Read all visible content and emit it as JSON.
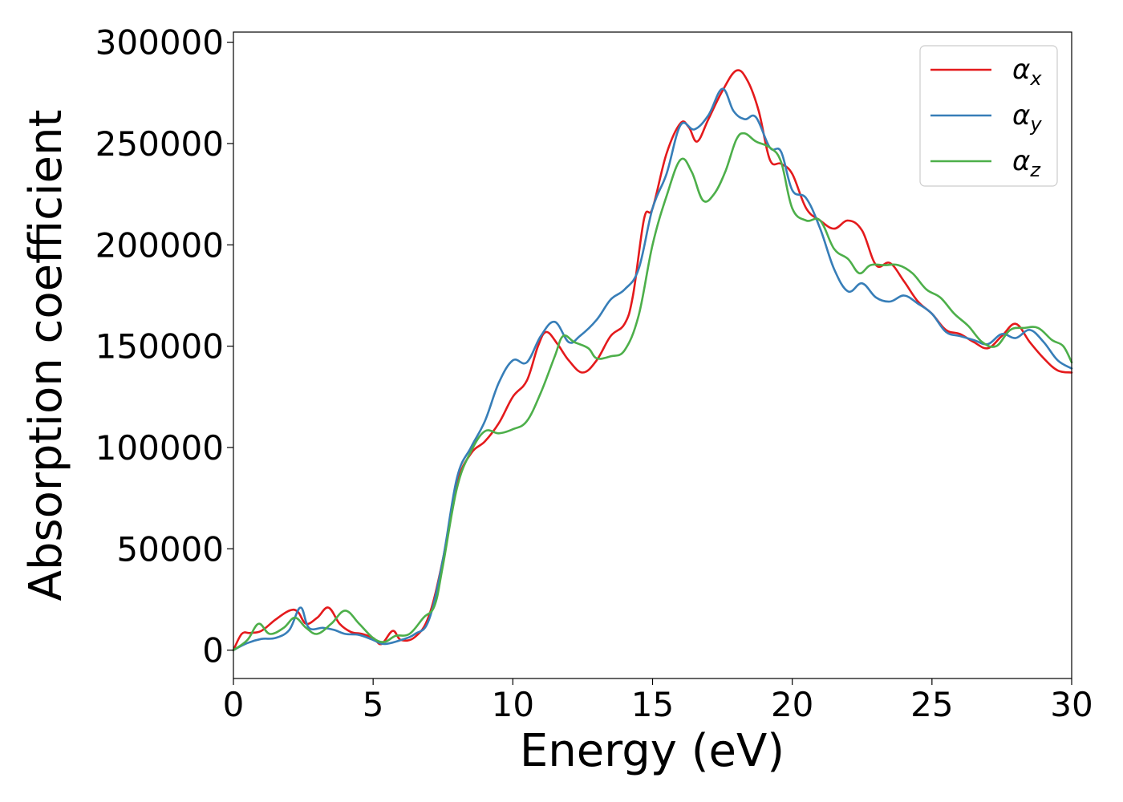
{
  "chart_data": {
    "type": "line",
    "xlabel": "Energy (eV)",
    "ylabel": "Absorption coefficient",
    "xlim": [
      0,
      30
    ],
    "ylim": [
      -14000,
      305000
    ],
    "xticks": [
      "0",
      "5",
      "10",
      "15",
      "20",
      "25",
      "30"
    ],
    "yticks": [
      "0",
      "50000",
      "100000",
      "150000",
      "200000",
      "250000",
      "300000"
    ],
    "xtick_values": [
      0,
      5,
      10,
      15,
      20,
      25,
      30
    ],
    "ytick_values": [
      0,
      50000,
      100000,
      150000,
      200000,
      250000,
      300000
    ],
    "grid": false,
    "legend_position": "top-right",
    "series": [
      {
        "name": "α_x",
        "symbol": "α",
        "subscript": "x",
        "color": "#e41a1c",
        "points": [
          [
            0,
            0
          ],
          [
            0.3,
            8000
          ],
          [
            0.6,
            8500
          ],
          [
            1,
            9500
          ],
          [
            1.5,
            15000
          ],
          [
            2,
            19500
          ],
          [
            2.3,
            19000
          ],
          [
            2.6,
            13000
          ],
          [
            3,
            16000
          ],
          [
            3.4,
            21000
          ],
          [
            3.8,
            13000
          ],
          [
            4.2,
            9000
          ],
          [
            4.6,
            8000
          ],
          [
            5,
            6000
          ],
          [
            5.3,
            3000
          ],
          [
            5.7,
            9500
          ],
          [
            6,
            5000
          ],
          [
            6.5,
            6500
          ],
          [
            7,
            17000
          ],
          [
            7.5,
            45000
          ],
          [
            8,
            82000
          ],
          [
            8.5,
            97000
          ],
          [
            9,
            103000
          ],
          [
            9.5,
            112000
          ],
          [
            10,
            125000
          ],
          [
            10.5,
            133000
          ],
          [
            10.9,
            150000
          ],
          [
            11.2,
            157000
          ],
          [
            11.6,
            151000
          ],
          [
            12,
            143000
          ],
          [
            12.5,
            137000
          ],
          [
            13,
            143000
          ],
          [
            13.5,
            155000
          ],
          [
            14,
            161000
          ],
          [
            14.3,
            175000
          ],
          [
            14.7,
            213000
          ],
          [
            15,
            218000
          ],
          [
            15.5,
            245000
          ],
          [
            16,
            260000
          ],
          [
            16.3,
            258000
          ],
          [
            16.6,
            251000
          ],
          [
            17,
            262000
          ],
          [
            17.5,
            276000
          ],
          [
            18,
            286000
          ],
          [
            18.4,
            281000
          ],
          [
            18.8,
            266000
          ],
          [
            19.2,
            242000
          ],
          [
            19.6,
            240000
          ],
          [
            20,
            235000
          ],
          [
            20.5,
            218000
          ],
          [
            21,
            212000
          ],
          [
            21.5,
            208000
          ],
          [
            22,
            212000
          ],
          [
            22.5,
            207000
          ],
          [
            23,
            190000
          ],
          [
            23.5,
            191000
          ],
          [
            24,
            182000
          ],
          [
            24.5,
            172000
          ],
          [
            25,
            166000
          ],
          [
            25.5,
            158000
          ],
          [
            26,
            156000
          ],
          [
            26.5,
            152000
          ],
          [
            27,
            149000
          ],
          [
            27.5,
            155000
          ],
          [
            28,
            161000
          ],
          [
            28.5,
            152000
          ],
          [
            29,
            144000
          ],
          [
            29.5,
            138000
          ],
          [
            30,
            137000
          ]
        ]
      },
      {
        "name": "α_y",
        "symbol": "α",
        "subscript": "y",
        "color": "#377eb8",
        "points": [
          [
            0,
            0
          ],
          [
            0.5,
            3500
          ],
          [
            1,
            5500
          ],
          [
            1.5,
            6000
          ],
          [
            2,
            10000
          ],
          [
            2.4,
            21000
          ],
          [
            2.7,
            11000
          ],
          [
            3.2,
            11000
          ],
          [
            3.6,
            10000
          ],
          [
            4,
            8000
          ],
          [
            4.5,
            7500
          ],
          [
            5,
            5000
          ],
          [
            5.4,
            3000
          ],
          [
            6,
            5000
          ],
          [
            6.5,
            8000
          ],
          [
            7,
            15000
          ],
          [
            7.5,
            45000
          ],
          [
            8,
            85000
          ],
          [
            8.5,
            100000
          ],
          [
            9,
            113000
          ],
          [
            9.5,
            132000
          ],
          [
            10,
            143000
          ],
          [
            10.5,
            142000
          ],
          [
            11,
            155000
          ],
          [
            11.5,
            162000
          ],
          [
            12,
            152000
          ],
          [
            12.4,
            155000
          ],
          [
            13,
            163000
          ],
          [
            13.5,
            173000
          ],
          [
            14,
            178000
          ],
          [
            14.5,
            188000
          ],
          [
            15,
            218000
          ],
          [
            15.5,
            235000
          ],
          [
            16,
            259000
          ],
          [
            16.5,
            257000
          ],
          [
            17,
            264000
          ],
          [
            17.5,
            277000
          ],
          [
            17.9,
            266000
          ],
          [
            18.3,
            262000
          ],
          [
            18.7,
            263000
          ],
          [
            19.2,
            248000
          ],
          [
            19.6,
            246000
          ],
          [
            20,
            227000
          ],
          [
            20.5,
            223000
          ],
          [
            21,
            208000
          ],
          [
            21.5,
            188000
          ],
          [
            22,
            177000
          ],
          [
            22.5,
            181000
          ],
          [
            23,
            174000
          ],
          [
            23.5,
            172000
          ],
          [
            24,
            175000
          ],
          [
            24.5,
            171000
          ],
          [
            25,
            166000
          ],
          [
            25.5,
            157000
          ],
          [
            26,
            155000
          ],
          [
            26.5,
            153000
          ],
          [
            27,
            151000
          ],
          [
            27.5,
            156000
          ],
          [
            28,
            154000
          ],
          [
            28.5,
            158000
          ],
          [
            29,
            152000
          ],
          [
            29.5,
            143000
          ],
          [
            30,
            139000
          ]
        ]
      },
      {
        "name": "α_z",
        "symbol": "α",
        "subscript": "z",
        "color": "#4daf4a",
        "points": [
          [
            0,
            0
          ],
          [
            0.5,
            5000
          ],
          [
            0.9,
            13000
          ],
          [
            1.3,
            8000
          ],
          [
            1.8,
            11000
          ],
          [
            2.2,
            16000
          ],
          [
            2.6,
            11000
          ],
          [
            3,
            8000
          ],
          [
            3.5,
            13000
          ],
          [
            4,
            19500
          ],
          [
            4.5,
            13000
          ],
          [
            5,
            6000
          ],
          [
            5.4,
            4000
          ],
          [
            5.8,
            7000
          ],
          [
            6.3,
            8000
          ],
          [
            6.8,
            16000
          ],
          [
            7.2,
            22000
          ],
          [
            7.5,
            42000
          ],
          [
            8,
            80000
          ],
          [
            8.5,
            98000
          ],
          [
            9,
            108000
          ],
          [
            9.5,
            107000
          ],
          [
            10,
            109000
          ],
          [
            10.5,
            113000
          ],
          [
            11,
            127000
          ],
          [
            11.5,
            145000
          ],
          [
            11.8,
            155000
          ],
          [
            12.2,
            152000
          ],
          [
            12.7,
            149000
          ],
          [
            13,
            144000
          ],
          [
            13.5,
            145000
          ],
          [
            14,
            148000
          ],
          [
            14.5,
            165000
          ],
          [
            15,
            200000
          ],
          [
            15.5,
            224000
          ],
          [
            16,
            242000
          ],
          [
            16.4,
            236000
          ],
          [
            16.8,
            222000
          ],
          [
            17.2,
            225000
          ],
          [
            17.6,
            236000
          ],
          [
            18,
            252000
          ],
          [
            18.3,
            255000
          ],
          [
            18.7,
            251000
          ],
          [
            19.2,
            248000
          ],
          [
            19.6,
            241000
          ],
          [
            20,
            218000
          ],
          [
            20.5,
            212000
          ],
          [
            21,
            212000
          ],
          [
            21.5,
            198000
          ],
          [
            22,
            193000
          ],
          [
            22.4,
            186000
          ],
          [
            22.8,
            190000
          ],
          [
            23.3,
            190000
          ],
          [
            23.8,
            190000
          ],
          [
            24.3,
            186000
          ],
          [
            24.8,
            178000
          ],
          [
            25.3,
            174000
          ],
          [
            25.8,
            166000
          ],
          [
            26.3,
            160000
          ],
          [
            26.8,
            152000
          ],
          [
            27.3,
            150000
          ],
          [
            27.8,
            158000
          ],
          [
            28.3,
            159000
          ],
          [
            28.8,
            159000
          ],
          [
            29.3,
            153000
          ],
          [
            29.7,
            150000
          ],
          [
            30,
            142000
          ]
        ]
      }
    ]
  }
}
